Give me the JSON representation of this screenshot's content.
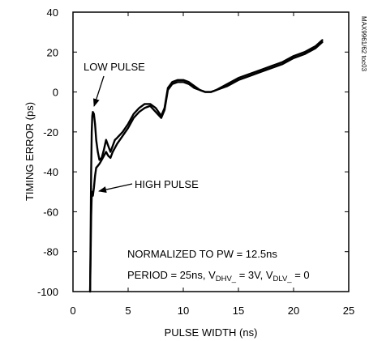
{
  "chart_data": {
    "type": "line",
    "xlabel": "PULSE WIDTH (ns)",
    "ylabel": "TIMING ERROR (ps)",
    "xlim": [
      0,
      25
    ],
    "ylim": [
      -100,
      40
    ],
    "x_ticks": [
      0,
      5,
      10,
      15,
      20,
      25
    ],
    "y_ticks": [
      -100,
      -80,
      -60,
      -40,
      -20,
      0,
      20,
      40
    ],
    "grid": false,
    "series": [
      {
        "name": "LOW PULSE",
        "x": [
          1.55,
          1.6,
          1.65,
          1.7,
          1.75,
          1.8,
          1.9,
          2.0,
          2.1,
          2.25,
          2.4,
          2.6,
          2.8,
          3.0,
          3.2,
          3.4,
          3.6,
          3.8,
          4.0,
          4.5,
          5.0,
          5.5,
          6.0,
          6.5,
          7.0,
          7.5,
          8.0,
          8.3,
          8.6,
          9.0,
          9.5,
          10.0,
          10.5,
          11.0,
          11.5,
          12.0,
          12.5,
          13.0,
          14.0,
          15.0,
          16.0,
          17.0,
          18.0,
          19.0,
          20.0,
          21.0,
          22.0,
          22.6
        ],
        "y": [
          -100,
          -70,
          -40,
          -20,
          -12,
          -10,
          -11,
          -16,
          -24,
          -30,
          -34,
          -33,
          -29,
          -24,
          -27,
          -30,
          -27,
          -24,
          -23,
          -20,
          -16,
          -11,
          -8,
          -6,
          -6,
          -8,
          -12,
          -8,
          2,
          5,
          6,
          6,
          5,
          3,
          1,
          0,
          0,
          1,
          4,
          7,
          9,
          11,
          13,
          15,
          18,
          20,
          23,
          26
        ]
      },
      {
        "name": "HIGH PULSE",
        "x": [
          1.55,
          1.6,
          1.65,
          1.7,
          1.75,
          1.8,
          1.9,
          2.0,
          2.1,
          2.25,
          2.4,
          2.6,
          2.8,
          3.0,
          3.2,
          3.4,
          3.6,
          3.8,
          4.0,
          4.5,
          5.0,
          5.5,
          6.0,
          6.5,
          7.0,
          7.5,
          8.0,
          8.3,
          8.6,
          9.0,
          9.5,
          10.0,
          10.5,
          11.0,
          11.5,
          12.0,
          12.5,
          13.0,
          14.0,
          15.0,
          16.0,
          17.0,
          18.0,
          19.0,
          20.0,
          21.0,
          22.0,
          22.6
        ],
        "y": [
          -100,
          -80,
          -62,
          -52,
          -50,
          -52,
          -48,
          -42,
          -38,
          -37,
          -36,
          -34,
          -32,
          -30,
          -32,
          -33,
          -30,
          -28,
          -26,
          -22,
          -18,
          -13,
          -10,
          -8,
          -7,
          -10,
          -13,
          -9,
          1,
          4,
          5,
          5,
          4,
          2,
          1,
          0,
          0,
          1,
          3,
          6,
          8,
          10,
          12,
          14,
          17,
          19,
          22,
          25
        ]
      }
    ],
    "annotations": [
      {
        "id": "low_pulse",
        "text": "LOW PULSE",
        "target": [
          1.8,
          -10
        ]
      },
      {
        "id": "high_pulse",
        "text": "HIGH PULSE",
        "target": [
          2.0,
          -48
        ]
      }
    ],
    "notes": {
      "line1": "NORMALIZED TO PW = 12.5ns",
      "line2_prefix": "PERIOD = 25ns, V",
      "dhv_sub": "DHV_",
      "dhv_eq": " = 3V, V",
      "dlv_sub": "DLV_",
      "dlv_eq": " = 0"
    },
    "figure_id": "MAX9961/62 toc03"
  }
}
